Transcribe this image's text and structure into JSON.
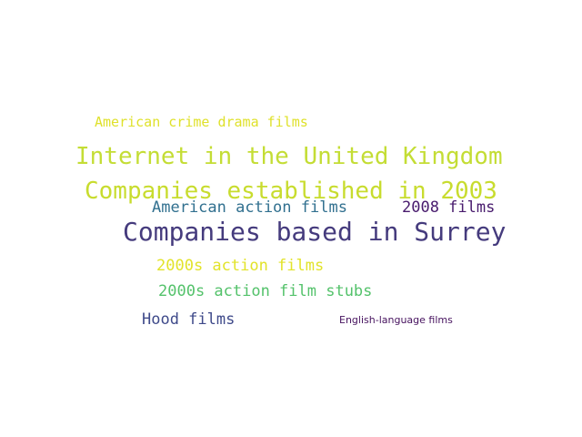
{
  "word_cloud": {
    "words": [
      {
        "text": "American crime drama films",
        "color": "#dfe12b"
      },
      {
        "text": "Internet in the United Kingdom",
        "color": "#c4dd35"
      },
      {
        "text": "Companies established in 2003",
        "color": "#c8dc2e"
      },
      {
        "text": "American action films",
        "color": "#31708f"
      },
      {
        "text": "2008 films",
        "color": "#481b6d"
      },
      {
        "text": "Companies based in Surrey",
        "color": "#453b7d"
      },
      {
        "text": "2000s action films",
        "color": "#e2e32a"
      },
      {
        "text": "2000s action film stubs",
        "color": "#54c26b"
      },
      {
        "text": "Hood films",
        "color": "#3f4a8a"
      },
      {
        "text": "English-language films",
        "color": "#46125e"
      }
    ]
  }
}
